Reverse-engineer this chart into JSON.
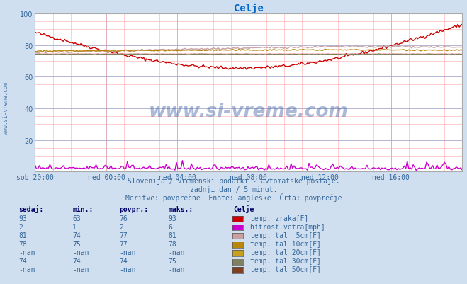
{
  "title": "Celje",
  "title_color": "#0066cc",
  "bg_color": "#d0dff0",
  "plot_bg_color": "#ffffff",
  "grid_color_major": "#aaaacc",
  "grid_color_minor": "#ffaaaa",
  "text_color": "#336699",
  "watermark_text": "www.si-vreme.com",
  "watermark_color": "#336699",
  "subtitle1": "Slovenija / vremenski podatki - avtomatske postaje.",
  "subtitle2": "zadnji dan / 5 minut.",
  "subtitle3": "Meritve: povprečne  Enote: angleške  Črta: povprečje",
  "x_ticks_labels": [
    "sob 20:00",
    "ned 00:00",
    "ned 04:00",
    "ned 08:00",
    "ned 12:00",
    "ned 16:00"
  ],
  "x_ticks_pos": [
    0.0,
    0.1667,
    0.3333,
    0.5,
    0.6667,
    0.8333
  ],
  "ylim": [
    0,
    100
  ],
  "yticks": [
    20,
    40,
    60,
    80,
    100
  ],
  "n_points": 288,
  "series": [
    {
      "label": "temp. zraka[F]",
      "color": "#cc0000",
      "lw": 1.0,
      "profile": "temp_zraka"
    },
    {
      "label": "hitrost vetra[mph]",
      "color": "#cc00cc",
      "lw": 1.0,
      "profile": "hitrost_vetra"
    },
    {
      "label": "temp. tal  5cm[F]",
      "color": "#c8a0a0",
      "lw": 1.0,
      "profile": "tal5"
    },
    {
      "label": "temp. tal 10cm[F]",
      "color": "#b8860b",
      "lw": 1.0,
      "profile": "tal10"
    },
    {
      "label": "temp. tal 20cm[F]",
      "color": "#c8a020",
      "lw": 1.0,
      "profile": "tal20"
    },
    {
      "label": "temp. tal 30cm[F]",
      "color": "#808060",
      "lw": 1.0,
      "profile": "tal30"
    },
    {
      "label": "temp. tal 50cm[F]",
      "color": "#804020",
      "lw": 1.0,
      "profile": "tal50"
    }
  ],
  "legend_header_color": "#000066",
  "legend_value_color": "#336699",
  "table_headers": [
    "sedaj:",
    "min.:",
    "povpr.:",
    "maks.:"
  ],
  "table_rows": [
    [
      "93",
      "63",
      "76",
      "93"
    ],
    [
      "2",
      "1",
      "2",
      "6"
    ],
    [
      "81",
      "74",
      "77",
      "81"
    ],
    [
      "78",
      "75",
      "77",
      "78"
    ],
    [
      "-nan",
      "-nan",
      "-nan",
      "-nan"
    ],
    [
      "74",
      "74",
      "74",
      "75"
    ],
    [
      "-nan",
      "-nan",
      "-nan",
      "-nan"
    ]
  ],
  "legend_colors": [
    "#cc0000",
    "#cc00cc",
    "#c8a0a0",
    "#b8860b",
    "#c8a020",
    "#808060",
    "#804020"
  ],
  "legend_labels": [
    "temp. zraka[F]",
    "hitrost vetra[mph]",
    "temp. tal  5cm[F]",
    "temp. tal 10cm[F]",
    "temp. tal 20cm[F]",
    "temp. tal 30cm[F]",
    "temp. tal 50cm[F]"
  ]
}
